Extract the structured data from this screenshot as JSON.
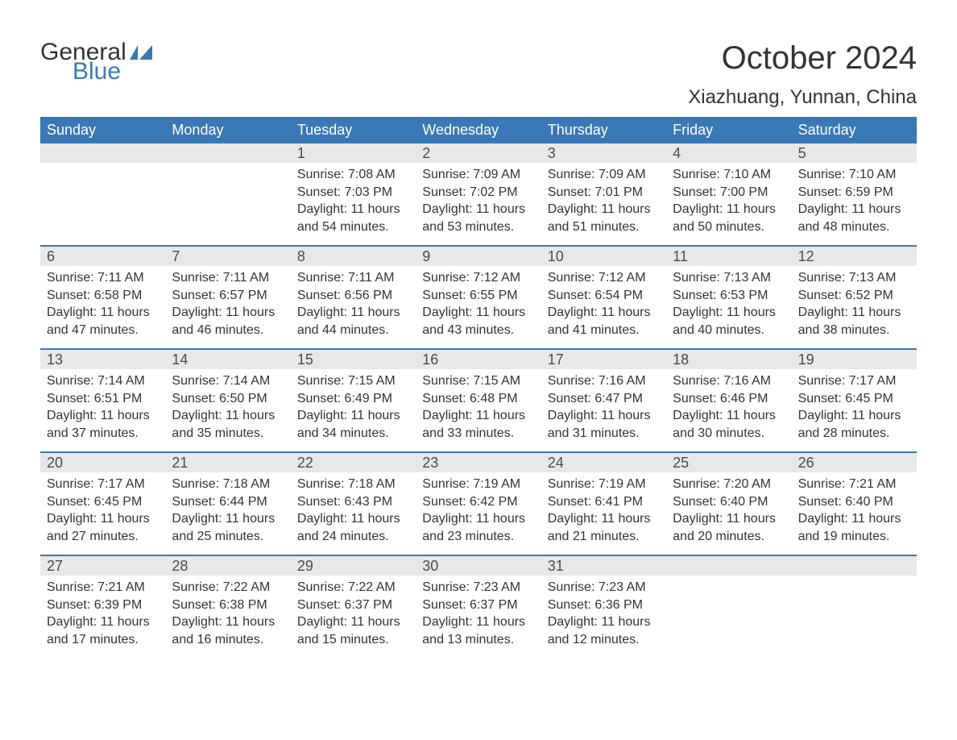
{
  "brand": {
    "word1": "General",
    "word2": "Blue",
    "general_color": "#333333",
    "blue_color": "#3a78b5",
    "flag_color": "#3a78b5"
  },
  "header": {
    "month_title": "October 2024",
    "location": "Xiazhuang, Yunnan, China",
    "title_fontsize": 40,
    "location_fontsize": 24,
    "title_color": "#333333"
  },
  "calendar": {
    "type": "table",
    "weekday_bg": "#3a78b5",
    "weekday_text_color": "#ffffff",
    "day_header_bg": "#e8e8e8",
    "row_border_color": "#3a78b5",
    "body_text_color": "#333333",
    "body_fontsize": 16,
    "weekdays": [
      "Sunday",
      "Monday",
      "Tuesday",
      "Wednesday",
      "Thursday",
      "Friday",
      "Saturday"
    ],
    "weeks": [
      [
        {
          "day": null
        },
        {
          "day": null
        },
        {
          "day": "1",
          "sunrise": "Sunrise: 7:08 AM",
          "sunset": "Sunset: 7:03 PM",
          "daylight": "Daylight: 11 hours and 54 minutes."
        },
        {
          "day": "2",
          "sunrise": "Sunrise: 7:09 AM",
          "sunset": "Sunset: 7:02 PM",
          "daylight": "Daylight: 11 hours and 53 minutes."
        },
        {
          "day": "3",
          "sunrise": "Sunrise: 7:09 AM",
          "sunset": "Sunset: 7:01 PM",
          "daylight": "Daylight: 11 hours and 51 minutes."
        },
        {
          "day": "4",
          "sunrise": "Sunrise: 7:10 AM",
          "sunset": "Sunset: 7:00 PM",
          "daylight": "Daylight: 11 hours and 50 minutes."
        },
        {
          "day": "5",
          "sunrise": "Sunrise: 7:10 AM",
          "sunset": "Sunset: 6:59 PM",
          "daylight": "Daylight: 11 hours and 48 minutes."
        }
      ],
      [
        {
          "day": "6",
          "sunrise": "Sunrise: 7:11 AM",
          "sunset": "Sunset: 6:58 PM",
          "daylight": "Daylight: 11 hours and 47 minutes."
        },
        {
          "day": "7",
          "sunrise": "Sunrise: 7:11 AM",
          "sunset": "Sunset: 6:57 PM",
          "daylight": "Daylight: 11 hours and 46 minutes."
        },
        {
          "day": "8",
          "sunrise": "Sunrise: 7:11 AM",
          "sunset": "Sunset: 6:56 PM",
          "daylight": "Daylight: 11 hours and 44 minutes."
        },
        {
          "day": "9",
          "sunrise": "Sunrise: 7:12 AM",
          "sunset": "Sunset: 6:55 PM",
          "daylight": "Daylight: 11 hours and 43 minutes."
        },
        {
          "day": "10",
          "sunrise": "Sunrise: 7:12 AM",
          "sunset": "Sunset: 6:54 PM",
          "daylight": "Daylight: 11 hours and 41 minutes."
        },
        {
          "day": "11",
          "sunrise": "Sunrise: 7:13 AM",
          "sunset": "Sunset: 6:53 PM",
          "daylight": "Daylight: 11 hours and 40 minutes."
        },
        {
          "day": "12",
          "sunrise": "Sunrise: 7:13 AM",
          "sunset": "Sunset: 6:52 PM",
          "daylight": "Daylight: 11 hours and 38 minutes."
        }
      ],
      [
        {
          "day": "13",
          "sunrise": "Sunrise: 7:14 AM",
          "sunset": "Sunset: 6:51 PM",
          "daylight": "Daylight: 11 hours and 37 minutes."
        },
        {
          "day": "14",
          "sunrise": "Sunrise: 7:14 AM",
          "sunset": "Sunset: 6:50 PM",
          "daylight": "Daylight: 11 hours and 35 minutes."
        },
        {
          "day": "15",
          "sunrise": "Sunrise: 7:15 AM",
          "sunset": "Sunset: 6:49 PM",
          "daylight": "Daylight: 11 hours and 34 minutes."
        },
        {
          "day": "16",
          "sunrise": "Sunrise: 7:15 AM",
          "sunset": "Sunset: 6:48 PM",
          "daylight": "Daylight: 11 hours and 33 minutes."
        },
        {
          "day": "17",
          "sunrise": "Sunrise: 7:16 AM",
          "sunset": "Sunset: 6:47 PM",
          "daylight": "Daylight: 11 hours and 31 minutes."
        },
        {
          "day": "18",
          "sunrise": "Sunrise: 7:16 AM",
          "sunset": "Sunset: 6:46 PM",
          "daylight": "Daylight: 11 hours and 30 minutes."
        },
        {
          "day": "19",
          "sunrise": "Sunrise: 7:17 AM",
          "sunset": "Sunset: 6:45 PM",
          "daylight": "Daylight: 11 hours and 28 minutes."
        }
      ],
      [
        {
          "day": "20",
          "sunrise": "Sunrise: 7:17 AM",
          "sunset": "Sunset: 6:45 PM",
          "daylight": "Daylight: 11 hours and 27 minutes."
        },
        {
          "day": "21",
          "sunrise": "Sunrise: 7:18 AM",
          "sunset": "Sunset: 6:44 PM",
          "daylight": "Daylight: 11 hours and 25 minutes."
        },
        {
          "day": "22",
          "sunrise": "Sunrise: 7:18 AM",
          "sunset": "Sunset: 6:43 PM",
          "daylight": "Daylight: 11 hours and 24 minutes."
        },
        {
          "day": "23",
          "sunrise": "Sunrise: 7:19 AM",
          "sunset": "Sunset: 6:42 PM",
          "daylight": "Daylight: 11 hours and 23 minutes."
        },
        {
          "day": "24",
          "sunrise": "Sunrise: 7:19 AM",
          "sunset": "Sunset: 6:41 PM",
          "daylight": "Daylight: 11 hours and 21 minutes."
        },
        {
          "day": "25",
          "sunrise": "Sunrise: 7:20 AM",
          "sunset": "Sunset: 6:40 PM",
          "daylight": "Daylight: 11 hours and 20 minutes."
        },
        {
          "day": "26",
          "sunrise": "Sunrise: 7:21 AM",
          "sunset": "Sunset: 6:40 PM",
          "daylight": "Daylight: 11 hours and 19 minutes."
        }
      ],
      [
        {
          "day": "27",
          "sunrise": "Sunrise: 7:21 AM",
          "sunset": "Sunset: 6:39 PM",
          "daylight": "Daylight: 11 hours and 17 minutes."
        },
        {
          "day": "28",
          "sunrise": "Sunrise: 7:22 AM",
          "sunset": "Sunset: 6:38 PM",
          "daylight": "Daylight: 11 hours and 16 minutes."
        },
        {
          "day": "29",
          "sunrise": "Sunrise: 7:22 AM",
          "sunset": "Sunset: 6:37 PM",
          "daylight": "Daylight: 11 hours and 15 minutes."
        },
        {
          "day": "30",
          "sunrise": "Sunrise: 7:23 AM",
          "sunset": "Sunset: 6:37 PM",
          "daylight": "Daylight: 11 hours and 13 minutes."
        },
        {
          "day": "31",
          "sunrise": "Sunrise: 7:23 AM",
          "sunset": "Sunset: 6:36 PM",
          "daylight": "Daylight: 11 hours and 12 minutes."
        },
        {
          "day": null
        },
        {
          "day": null
        }
      ]
    ]
  }
}
